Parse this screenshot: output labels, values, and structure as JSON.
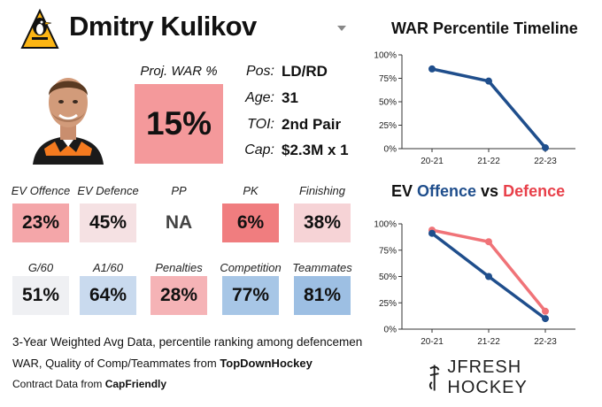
{
  "player": {
    "name": "Dmitry Kulikov",
    "proj_war_label": "Proj. WAR %",
    "proj_war_value": "15%",
    "info": [
      {
        "label": "Pos:",
        "value": "LD/RD"
      },
      {
        "label": "Age:",
        "value": "31"
      },
      {
        "label": "TOI:",
        "value": "2nd Pair"
      },
      {
        "label": "Cap:",
        "value": "$2.3M x 1"
      }
    ]
  },
  "stats_row1": [
    {
      "label": "EV Offence",
      "value": "23%",
      "color": "#f4a6a9"
    },
    {
      "label": "EV Defence",
      "value": "45%",
      "color": "#f5e1e3"
    },
    {
      "label": "PP",
      "value": "NA",
      "color": "#ffffff"
    },
    {
      "label": "PK",
      "value": "6%",
      "color": "#f07d7f"
    },
    {
      "label": "Finishing",
      "value": "38%",
      "color": "#f6d3d6"
    }
  ],
  "stats_row2": [
    {
      "label": "G/60",
      "value": "51%",
      "color": "#eff0f3"
    },
    {
      "label": "A1/60",
      "value": "64%",
      "color": "#c9daee"
    },
    {
      "label": "Penalties",
      "value": "28%",
      "color": "#f5b3b6"
    },
    {
      "label": "Competition",
      "value": "77%",
      "color": "#a7c6e6"
    },
    {
      "label": "Teammates",
      "value": "81%",
      "color": "#9dbfe3"
    }
  ],
  "footnotes": {
    "line1": "3-Year Weighted Avg Data, percentile ranking among defencemen",
    "line2_prefix": "WAR, Quality of Comp/Teammates from ",
    "line2_bold": "TopDownHockey",
    "line3_prefix": "Contract Data from ",
    "line3_bold": "CapFriendly"
  },
  "brand": {
    "text": "JFRESH HOCKEY"
  },
  "chart_data": [
    {
      "type": "line",
      "title": "WAR Percentile Timeline",
      "categories": [
        "20-21",
        "21-22",
        "22-23"
      ],
      "series": [
        {
          "values": [
            85,
            72,
            1
          ],
          "color": "#1f4e8c"
        }
      ],
      "ylim": [
        0,
        100
      ],
      "yticks": [
        "0%",
        "25%",
        "50%",
        "75%",
        "100%"
      ],
      "grid": false
    },
    {
      "type": "line",
      "title_parts": [
        "EV ",
        "Offence",
        " vs ",
        "Defence"
      ],
      "title_colors": [
        "#111111",
        "#1f4e8c",
        "#111111",
        "#e8404a"
      ],
      "categories": [
        "20-21",
        "21-22",
        "22-23"
      ],
      "series": [
        {
          "values": [
            94,
            83,
            17
          ],
          "color": "#f07378"
        },
        {
          "values": [
            91,
            50,
            10
          ],
          "color": "#1f4e8c"
        }
      ],
      "ylim": [
        0,
        100
      ],
      "yticks": [
        "0%",
        "25%",
        "50%",
        "75%",
        "100%"
      ],
      "grid": false
    }
  ]
}
